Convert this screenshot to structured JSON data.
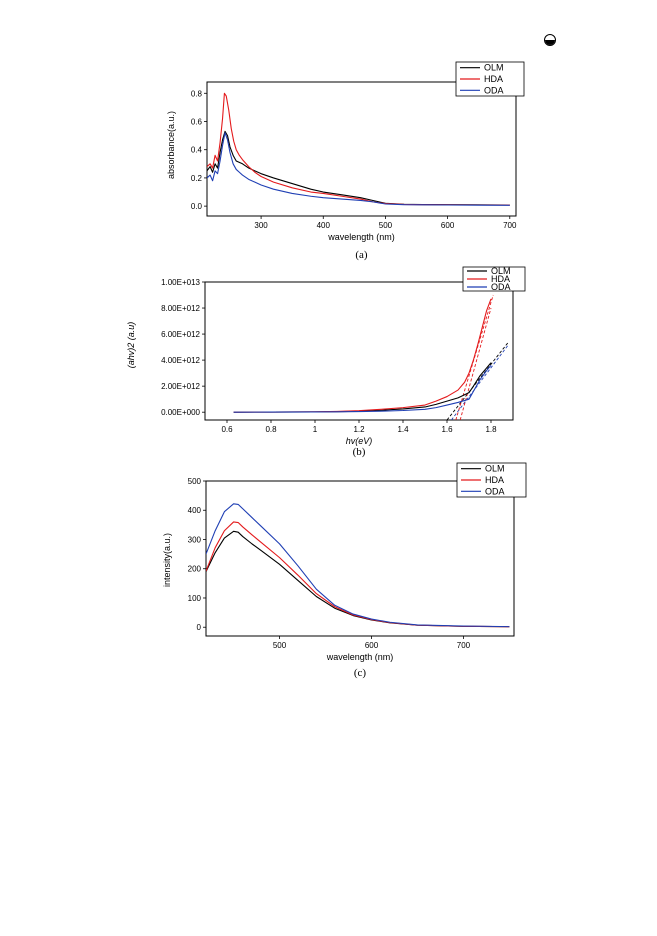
{
  "page_icon": "circled-eye-icon",
  "colors": {
    "OLM": "#000000",
    "HDA": "#e41a1c",
    "ODA": "#1f3fb4"
  },
  "chart_data": [
    {
      "type": "line",
      "caption": "(a)",
      "xlabel": "wavelength (nm)",
      "ylabel": "absorbance(a.u.)",
      "xlim": [
        213,
        710
      ],
      "ylim": [
        -0.07,
        0.88
      ],
      "xticks": [
        300,
        400,
        500,
        600,
        700
      ],
      "yticks": [
        0.0,
        0.2,
        0.4,
        0.6,
        0.8
      ],
      "ytick_labels": [
        "0.0",
        "0.2",
        "0.4",
        "0.6",
        "0.8"
      ],
      "legend_position": "top-right",
      "series": [
        {
          "name": "OLM",
          "x": [
            213,
            218,
            222,
            226,
            230,
            234,
            238,
            242,
            246,
            250,
            255,
            260,
            270,
            280,
            290,
            300,
            320,
            350,
            380,
            400,
            430,
            460,
            480,
            500,
            530,
            560,
            600,
            650,
            700
          ],
          "y": [
            0.25,
            0.28,
            0.24,
            0.3,
            0.27,
            0.38,
            0.47,
            0.53,
            0.5,
            0.42,
            0.36,
            0.32,
            0.3,
            0.27,
            0.25,
            0.23,
            0.2,
            0.16,
            0.12,
            0.1,
            0.08,
            0.06,
            0.04,
            0.02,
            0.013,
            0.011,
            0.01,
            0.009,
            0.008
          ]
        },
        {
          "name": "HDA",
          "x": [
            213,
            218,
            222,
            226,
            230,
            234,
            238,
            241,
            244,
            248,
            252,
            256,
            260,
            265,
            270,
            280,
            290,
            300,
            320,
            350,
            380,
            400,
            430,
            460,
            480,
            500,
            530,
            560,
            600,
            650,
            700
          ],
          "y": [
            0.28,
            0.3,
            0.27,
            0.36,
            0.32,
            0.45,
            0.62,
            0.8,
            0.78,
            0.68,
            0.55,
            0.46,
            0.4,
            0.36,
            0.33,
            0.28,
            0.24,
            0.21,
            0.17,
            0.13,
            0.1,
            0.09,
            0.07,
            0.05,
            0.03,
            0.018,
            0.012,
            0.01,
            0.009,
            0.008,
            0.007
          ]
        },
        {
          "name": "ODA",
          "x": [
            213,
            218,
            222,
            226,
            230,
            234,
            238,
            242,
            246,
            250,
            255,
            260,
            265,
            270,
            280,
            290,
            300,
            320,
            350,
            380,
            400,
            430,
            460,
            480,
            500,
            530,
            560,
            600,
            650,
            700
          ],
          "y": [
            0.2,
            0.22,
            0.18,
            0.25,
            0.23,
            0.32,
            0.43,
            0.52,
            0.47,
            0.38,
            0.3,
            0.26,
            0.24,
            0.22,
            0.19,
            0.17,
            0.15,
            0.12,
            0.09,
            0.07,
            0.06,
            0.05,
            0.04,
            0.03,
            0.015,
            0.01,
            0.009,
            0.008,
            0.007,
            0.006
          ]
        }
      ]
    },
    {
      "type": "line",
      "caption": "(b)",
      "xlabel": "hv(eV)",
      "ylabel": "(ahv)2 (a.u)",
      "xlim": [
        0.5,
        1.9
      ],
      "ylim": [
        -600000000000.0,
        10000000000000.0
      ],
      "xticks": [
        0.6,
        0.8,
        1.0,
        1.2,
        1.4,
        1.6,
        1.8
      ],
      "yticks": [
        0,
        2000000000000.0,
        4000000000000.0,
        6000000000000.0,
        8000000000000.0,
        10000000000000.0
      ],
      "ytick_labels": [
        "0.00E+000",
        "2.00E+012",
        "4.00E+012",
        "6.00E+012",
        "8.00E+012",
        "1.00E+013"
      ],
      "legend_position": "top-right",
      "series": [
        {
          "name": "OLM",
          "x": [
            0.63,
            0.8,
            1.0,
            1.1,
            1.2,
            1.3,
            1.4,
            1.5,
            1.55,
            1.6,
            1.65,
            1.7,
            1.72,
            1.75,
            1.78,
            1.8
          ],
          "y": [
            0,
            10000000000.0,
            20000000000.0,
            40000000000.0,
            80000000000.0,
            150000000000.0,
            250000000000.0,
            400000000000.0,
            600000000000.0,
            850000000000.0,
            1100000000000.0,
            1500000000000.0,
            2000000000000.0,
            2800000000000.0,
            3400000000000.0,
            3800000000000.0
          ]
        },
        {
          "name": "HDA",
          "x": [
            0.63,
            0.8,
            1.0,
            1.1,
            1.2,
            1.3,
            1.4,
            1.5,
            1.55,
            1.6,
            1.65,
            1.68,
            1.7,
            1.72,
            1.74,
            1.76,
            1.78,
            1.8
          ],
          "y": [
            0,
            10000000000.0,
            30000000000.0,
            60000000000.0,
            120000000000.0,
            220000000000.0,
            350000000000.0,
            550000000000.0,
            850000000000.0,
            1200000000000.0,
            1700000000000.0,
            2300000000000.0,
            3000000000000.0,
            4000000000000.0,
            5200000000000.0,
            6500000000000.0,
            7800000000000.0,
            8700000000000.0
          ]
        },
        {
          "name": "ODA",
          "x": [
            0.63,
            0.8,
            1.0,
            1.1,
            1.2,
            1.3,
            1.4,
            1.5,
            1.55,
            1.6,
            1.65,
            1.7,
            1.72,
            1.75,
            1.78,
            1.8
          ],
          "y": [
            0,
            10000000000.0,
            20000000000.0,
            30000000000.0,
            50000000000.0,
            80000000000.0,
            130000000000.0,
            220000000000.0,
            350000000000.0,
            550000000000.0,
            750000000000.0,
            1000000000000.0,
            1600000000000.0,
            2500000000000.0,
            3200000000000.0,
            3600000000000.0
          ]
        }
      ],
      "fit_lines": [
        {
          "color": "#000000",
          "x": [
            1.6,
            1.88
          ],
          "y": [
            -600000000000.0,
            5400000000000.0
          ]
        },
        {
          "color": "#1f3fb4",
          "x": [
            1.62,
            1.88
          ],
          "y": [
            -600000000000.0,
            5200000000000.0
          ]
        },
        {
          "color": "#e41a1c",
          "x": [
            1.64,
            1.81
          ],
          "y": [
            -600000000000.0,
            9000000000000.0
          ]
        },
        {
          "color": "#e41a1c",
          "x": [
            1.66,
            1.8
          ],
          "y": [
            -600000000000.0,
            8000000000000.0
          ]
        }
      ]
    },
    {
      "type": "line",
      "caption": "(c)",
      "xlabel": "wavelength (nm)",
      "ylabel": "intensity(a.u.)",
      "xlim": [
        420,
        755
      ],
      "ylim": [
        -30,
        500
      ],
      "xticks": [
        500,
        600,
        700
      ],
      "yticks": [
        0,
        100,
        200,
        300,
        400,
        500
      ],
      "ytick_labels": [
        "0",
        "100",
        "200",
        "300",
        "400",
        "500"
      ],
      "legend_position": "top-right",
      "series": [
        {
          "name": "OLM",
          "x": [
            420,
            430,
            440,
            450,
            455,
            460,
            470,
            480,
            500,
            520,
            540,
            560,
            580,
            600,
            620,
            650,
            700,
            750
          ],
          "y": [
            190,
            255,
            305,
            328,
            325,
            310,
            285,
            262,
            215,
            160,
            105,
            65,
            40,
            25,
            15,
            7,
            3,
            2
          ]
        },
        {
          "name": "HDA",
          "x": [
            420,
            430,
            440,
            450,
            455,
            460,
            470,
            480,
            500,
            520,
            540,
            560,
            580,
            600,
            620,
            650,
            700,
            750
          ],
          "y": [
            192,
            272,
            330,
            360,
            358,
            343,
            316,
            290,
            238,
            178,
            115,
            70,
            42,
            26,
            16,
            7,
            3,
            2
          ]
        },
        {
          "name": "ODA",
          "x": [
            420,
            430,
            440,
            450,
            455,
            460,
            470,
            480,
            500,
            520,
            540,
            560,
            580,
            600,
            620,
            650,
            700,
            750
          ],
          "y": [
            250,
            330,
            395,
            422,
            420,
            405,
            375,
            345,
            285,
            210,
            130,
            75,
            45,
            28,
            17,
            8,
            4,
            2
          ]
        }
      ]
    }
  ]
}
